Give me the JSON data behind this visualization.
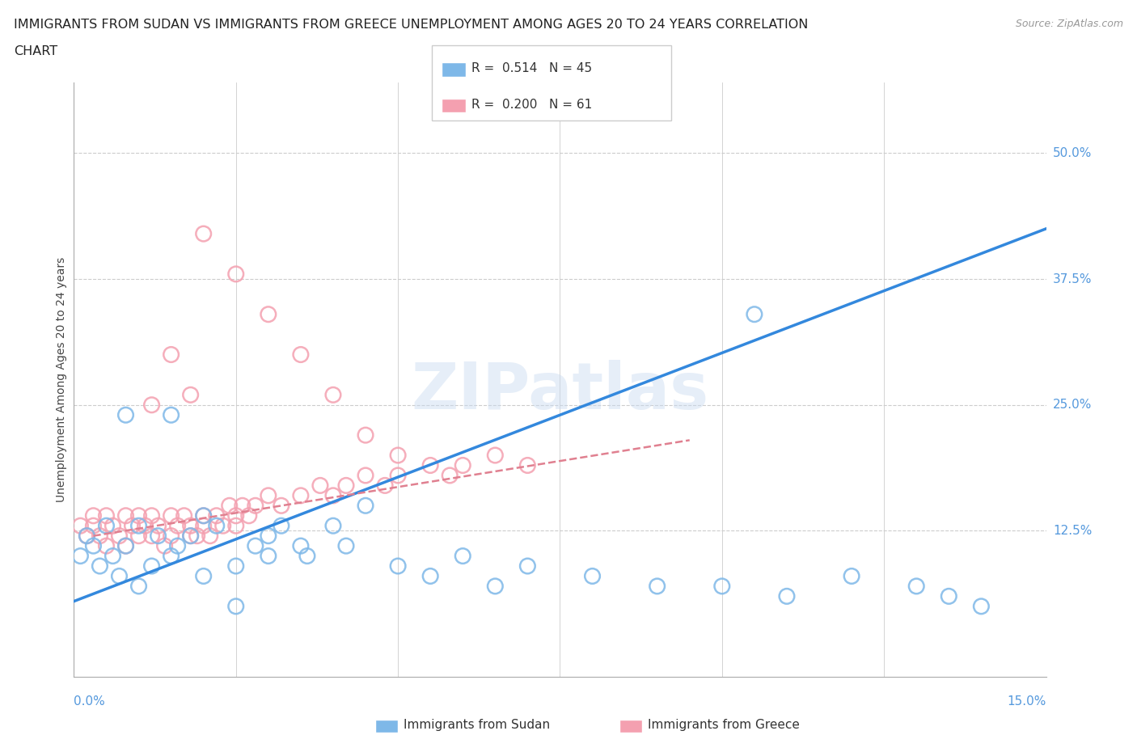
{
  "title_line1": "IMMIGRANTS FROM SUDAN VS IMMIGRANTS FROM GREECE UNEMPLOYMENT AMONG AGES 20 TO 24 YEARS CORRELATION",
  "title_line2": "CHART",
  "source_text": "Source: ZipAtlas.com",
  "xlabel_bottom_left": "0.0%",
  "xlabel_bottom_right": "15.0%",
  "ylabel": "Unemployment Among Ages 20 to 24 years",
  "ytick_labels": [
    "12.5%",
    "25.0%",
    "37.5%",
    "50.0%"
  ],
  "ytick_values": [
    0.125,
    0.25,
    0.375,
    0.5
  ],
  "xmin": 0.0,
  "xmax": 0.15,
  "ymin": -0.02,
  "ymax": 0.57,
  "legend_sudan_r": "0.514",
  "legend_sudan_n": "45",
  "legend_greece_r": "0.200",
  "legend_greece_n": "61",
  "color_sudan": "#7eb8e8",
  "color_greece": "#f4a0b0",
  "watermark": "ZIPatlas",
  "sudan_scatter_x": [
    0.001,
    0.002,
    0.003,
    0.004,
    0.005,
    0.006,
    0.007,
    0.008,
    0.01,
    0.01,
    0.012,
    0.013,
    0.015,
    0.016,
    0.018,
    0.02,
    0.02,
    0.022,
    0.025,
    0.025,
    0.028,
    0.03,
    0.03,
    0.032,
    0.035,
    0.036,
    0.04,
    0.042,
    0.045,
    0.05,
    0.055,
    0.06,
    0.065,
    0.07,
    0.08,
    0.09,
    0.1,
    0.11,
    0.12,
    0.13,
    0.135,
    0.14,
    0.008,
    0.015,
    0.105
  ],
  "sudan_scatter_y": [
    0.1,
    0.12,
    0.11,
    0.09,
    0.13,
    0.1,
    0.08,
    0.11,
    0.07,
    0.13,
    0.09,
    0.12,
    0.1,
    0.11,
    0.12,
    0.08,
    0.14,
    0.13,
    0.05,
    0.09,
    0.11,
    0.12,
    0.1,
    0.13,
    0.11,
    0.1,
    0.13,
    0.11,
    0.15,
    0.09,
    0.08,
    0.1,
    0.07,
    0.09,
    0.08,
    0.07,
    0.07,
    0.06,
    0.08,
    0.07,
    0.06,
    0.05,
    0.24,
    0.24,
    0.34
  ],
  "greece_scatter_x": [
    0.001,
    0.002,
    0.003,
    0.003,
    0.004,
    0.005,
    0.005,
    0.006,
    0.007,
    0.008,
    0.008,
    0.009,
    0.01,
    0.01,
    0.011,
    0.012,
    0.012,
    0.013,
    0.014,
    0.015,
    0.015,
    0.016,
    0.017,
    0.018,
    0.018,
    0.019,
    0.02,
    0.02,
    0.021,
    0.022,
    0.023,
    0.024,
    0.025,
    0.025,
    0.026,
    0.027,
    0.028,
    0.03,
    0.032,
    0.035,
    0.038,
    0.04,
    0.042,
    0.045,
    0.048,
    0.05,
    0.055,
    0.058,
    0.06,
    0.065,
    0.07,
    0.012,
    0.015,
    0.018,
    0.02,
    0.025,
    0.03,
    0.035,
    0.04,
    0.045,
    0.05
  ],
  "greece_scatter_y": [
    0.13,
    0.12,
    0.14,
    0.13,
    0.12,
    0.14,
    0.11,
    0.13,
    0.12,
    0.14,
    0.11,
    0.13,
    0.14,
    0.12,
    0.13,
    0.12,
    0.14,
    0.13,
    0.11,
    0.14,
    0.12,
    0.13,
    0.14,
    0.12,
    0.13,
    0.12,
    0.14,
    0.13,
    0.12,
    0.14,
    0.13,
    0.15,
    0.14,
    0.13,
    0.15,
    0.14,
    0.15,
    0.16,
    0.15,
    0.16,
    0.17,
    0.16,
    0.17,
    0.18,
    0.17,
    0.18,
    0.19,
    0.18,
    0.19,
    0.2,
    0.19,
    0.25,
    0.3,
    0.26,
    0.42,
    0.38,
    0.34,
    0.3,
    0.26,
    0.22,
    0.2
  ],
  "sudan_trend_x": [
    0.0,
    0.15
  ],
  "sudan_trend_y": [
    0.055,
    0.425
  ],
  "greece_trend_x": [
    0.003,
    0.095
  ],
  "greece_trend_y": [
    0.12,
    0.215
  ]
}
